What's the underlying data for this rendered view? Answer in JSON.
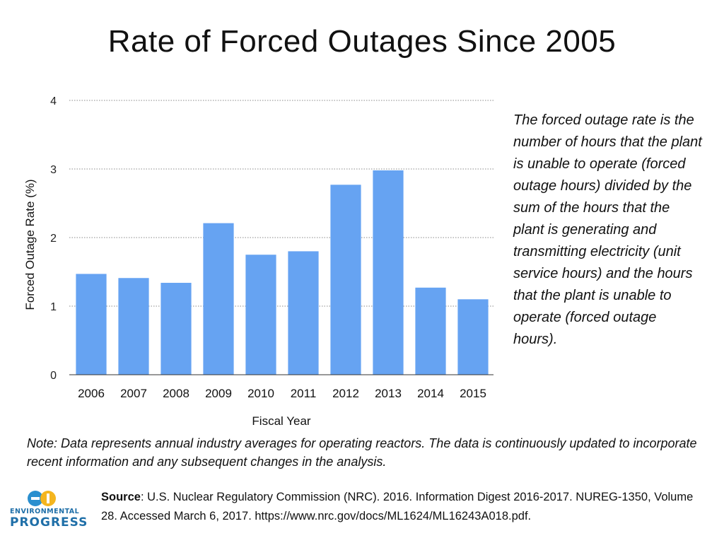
{
  "page": {
    "title": "Rate of Forced Outages Since 2005",
    "description": "The forced outage rate is the number of hours that the plant is unable to operate (forced outage hours) divided by the sum of the hours that the plant is generating and transmitting electricity (unit service hours) and the hours that the plant is unable to operate (forced outage hours).",
    "note": "Note: Data represents annual industry averages for operating reactors. The data is continuously updated to incorporate recent information and any subsequent changes in the analysis.",
    "source_label": "Source",
    "source_text": ": U.S. Nuclear Regulatory Commission (NRC). 2016. Information Digest 2016-2017. NUREG-1350, Volume 28. Accessed March 6, 2017. https://www.nrc.gov/docs/ML1624/ML16243A018.pdf.",
    "logo": {
      "line1": "ENVIRONMENTAL",
      "line2": "PROGRESS",
      "icon": "ep-logo-icon"
    }
  },
  "colors": {
    "bar": "#66a3f2",
    "grid": "#8a8a8a",
    "axis": "#333333",
    "logo_yellow": "#f4b51f",
    "logo_blue": "#2a8fcf"
  },
  "chart_data": {
    "type": "bar",
    "title": "Rate of Forced Outages Since 2005",
    "xlabel": "Fiscal Year",
    "ylabel": "Forced Outage Rate (%)",
    "categories": [
      "2006",
      "2007",
      "2008",
      "2009",
      "2010",
      "2011",
      "2012",
      "2013",
      "2014",
      "2015"
    ],
    "values": [
      1.47,
      1.41,
      1.34,
      2.21,
      1.75,
      1.8,
      2.77,
      2.98,
      1.27,
      1.1
    ],
    "ylim": [
      0,
      4
    ],
    "yticks": [
      "0",
      "1",
      "2",
      "3",
      "4"
    ],
    "grid": true,
    "legend": "none"
  }
}
